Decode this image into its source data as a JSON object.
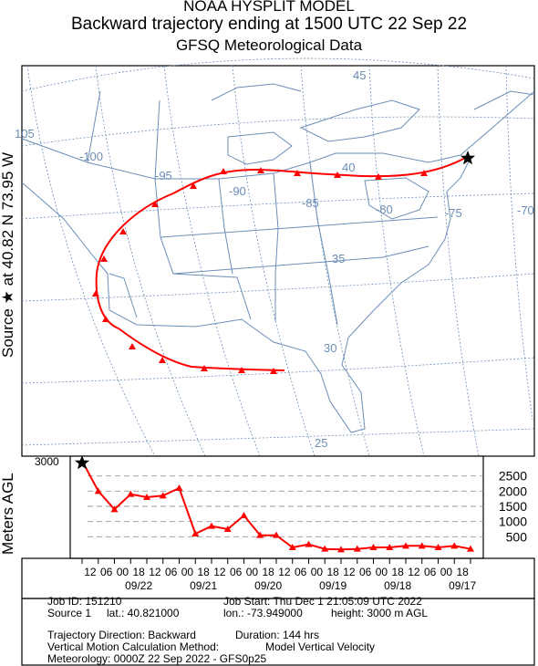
{
  "header": {
    "line1": "NOAA HYSPLIT MODEL",
    "line2": "Backward trajectory ending at 1500 UTC 22 Sep 22",
    "line3": "GFSQ Meteorological Data"
  },
  "side_label": {
    "prefix": "Source",
    "star": "★",
    "at": "at",
    "lat": "40.82 N",
    "lon": "73.95 W"
  },
  "map": {
    "longitude_labels": [
      "105",
      "-100",
      "-95",
      "-90",
      "-85",
      "-80",
      "-75",
      "-70"
    ],
    "latitude_labels": [
      "45",
      "40",
      "35",
      "30",
      "25"
    ],
    "trajectory_color": "#ff0000",
    "source_marker": "black star"
  },
  "chart_data": {
    "type": "line",
    "ylabel": "Meters AGL",
    "start_height": "3000",
    "y_ticks": [
      "2500",
      "2000",
      "1500",
      "1000",
      "500"
    ],
    "x_tick_labels": [
      "12",
      "06",
      "00",
      "18",
      "12",
      "06",
      "00",
      "18",
      "12",
      "06",
      "00",
      "18",
      "12",
      "06",
      "00",
      "18",
      "12",
      "06",
      "00",
      "18",
      "12",
      "06",
      "00",
      "18"
    ],
    "date_labels": [
      "09/22",
      "09/21",
      "09/20",
      "09/19",
      "09/18",
      "09/17"
    ],
    "series": [
      {
        "hours_back": [
          0,
          6,
          12,
          18,
          24,
          30,
          36,
          42,
          48,
          54,
          60,
          66,
          72,
          78,
          84,
          90,
          96,
          102,
          108,
          114,
          120,
          126,
          132,
          138,
          144
        ],
        "height_m": [
          3000,
          2000,
          1400,
          1900,
          1800,
          1850,
          2100,
          600,
          850,
          750,
          1200,
          550,
          550,
          150,
          250,
          100,
          80,
          100,
          150,
          150,
          200,
          200,
          150,
          200,
          100
        ]
      }
    ]
  },
  "footer": {
    "job_id": "Job ID: 151210",
    "job_start": "Job Start: Thu Dec  1 21:05:09 UTC 2022",
    "source": "Source 1",
    "lat": "lat.: 40.821000",
    "lon": "lon.: -73.949000",
    "height": "height: 3000 m AGL",
    "direction": "Trajectory Direction: Backward",
    "duration": "Duration: 144 hrs",
    "vertical_method": "Vertical Motion Calculation Method:",
    "vertical_value": "Model Vertical Velocity",
    "meteorology": "Meteorology: 0000Z 22 Sep 2022 - GFS0p25"
  }
}
